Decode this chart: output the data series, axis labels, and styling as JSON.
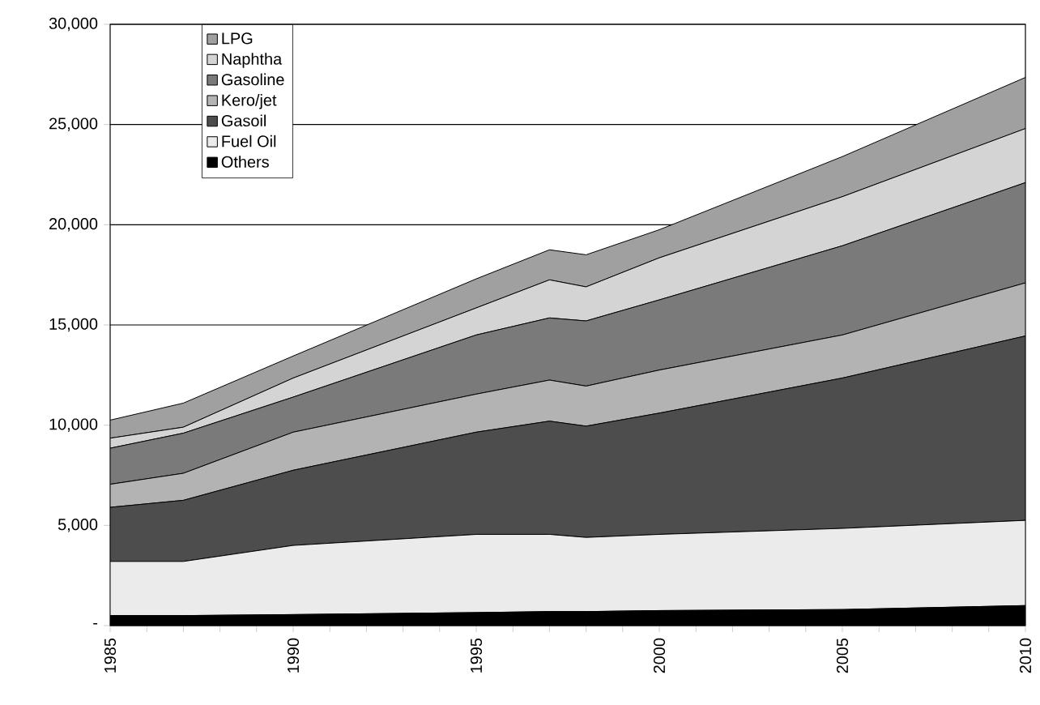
{
  "chart_data": {
    "type": "area",
    "stacked": true,
    "x": [
      1985,
      1987,
      1990,
      1995,
      1997,
      1998,
      2000,
      2005,
      2010
    ],
    "series": [
      {
        "name": "Others",
        "color": "#000000",
        "values": [
          500,
          500,
          550,
          650,
          700,
          700,
          750,
          800,
          1000
        ]
      },
      {
        "name": "Fuel Oil",
        "color": "#ebebeb",
        "values": [
          2700,
          2700,
          3450,
          3900,
          3850,
          3700,
          3800,
          4050,
          4250
        ]
      },
      {
        "name": "Gasoil",
        "color": "#4d4d4d",
        "values": [
          2700,
          3050,
          3750,
          5100,
          5650,
          5550,
          6050,
          7500,
          9200
        ]
      },
      {
        "name": "Kero/jet",
        "color": "#b3b3b3",
        "values": [
          1150,
          1350,
          1900,
          1900,
          2050,
          2000,
          2150,
          2150,
          2650
        ]
      },
      {
        "name": "Gasoline",
        "color": "#7a7a7a",
        "values": [
          1800,
          2000,
          1750,
          2950,
          3100,
          3250,
          3500,
          4450,
          5000
        ]
      },
      {
        "name": "Naphtha",
        "color": "#d4d4d4",
        "values": [
          500,
          300,
          950,
          1350,
          1900,
          1700,
          2100,
          2450,
          2700
        ]
      },
      {
        "name": "LPG",
        "color": "#a0a0a0",
        "values": [
          900,
          1200,
          1100,
          1450,
          1500,
          1600,
          1400,
          2000,
          2550
        ]
      }
    ],
    "xlim": [
      1985,
      2010
    ],
    "xticks": [
      1985,
      {
        "value": 1986,
        "label": null
      },
      {
        "value": 1987,
        "label": null
      },
      {
        "value": 1988,
        "label": null
      },
      {
        "value": 1989,
        "label": null
      },
      1990,
      {
        "value": 1991,
        "label": null
      },
      {
        "value": 1992,
        "label": null
      },
      {
        "value": 1993,
        "label": null
      },
      {
        "value": 1994,
        "label": null
      },
      1995,
      {
        "value": 1996,
        "label": null
      },
      {
        "value": 1997,
        "label": null
      },
      {
        "value": 1998,
        "label": null
      },
      {
        "value": 1999,
        "label": null
      },
      2000,
      {
        "value": 2001,
        "label": null
      },
      {
        "value": 2002,
        "label": null
      },
      {
        "value": 2003,
        "label": null
      },
      {
        "value": 2004,
        "label": null
      },
      2005,
      {
        "value": 2006,
        "label": null
      },
      {
        "value": 2007,
        "label": null
      },
      {
        "value": 2008,
        "label": null
      },
      {
        "value": 2009,
        "label": null
      },
      2010
    ],
    "ylim": [
      0,
      30000
    ],
    "yticks": [
      {
        "value": 0,
        "label": "-"
      },
      {
        "value": 5000,
        "label": "5,000"
      },
      {
        "value": 10000,
        "label": "10,000"
      },
      {
        "value": 15000,
        "label": "15,000"
      },
      {
        "value": 20000,
        "label": "20,000"
      },
      {
        "value": 25000,
        "label": "25,000"
      },
      {
        "value": 30000,
        "label": "30,000"
      }
    ],
    "grid": "y",
    "legend": "top left"
  }
}
